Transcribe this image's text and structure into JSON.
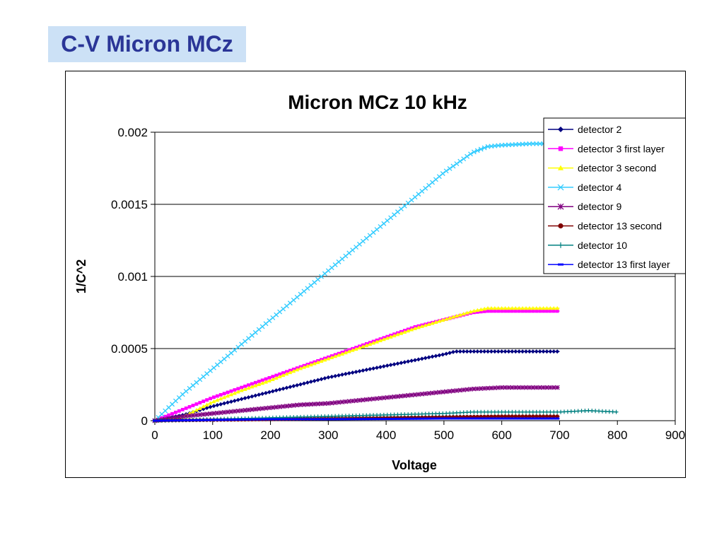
{
  "slide": {
    "title": "C-V Micron MCz"
  },
  "chart_data": {
    "type": "line",
    "title": "Micron MCz 10 kHz",
    "xlabel": "Voltage",
    "ylabel": "1/C^2",
    "xlim": [
      0,
      900
    ],
    "ylim": [
      0,
      0.002
    ],
    "x_ticks": [
      0,
      100,
      200,
      300,
      400,
      500,
      600,
      700,
      800,
      900
    ],
    "x_tick_labels": [
      "0",
      "100",
      "200",
      "300",
      "400",
      "500",
      "600",
      "700",
      "800",
      "900"
    ],
    "y_ticks": [
      0,
      0.0005,
      0.001,
      0.0015,
      0.002
    ],
    "y_tick_labels": [
      "0",
      "0.0005",
      "0.001",
      "0.0015",
      "0.002"
    ],
    "grid": "horizontal",
    "legend_position": "top-right",
    "series": [
      {
        "name": "detector 2",
        "color": "#000080",
        "marker": "diamond",
        "x": [
          0,
          50,
          100,
          150,
          200,
          250,
          300,
          350,
          400,
          450,
          500,
          520,
          550,
          600,
          650,
          700
        ],
        "y": [
          0,
          4e-05,
          0.0001,
          0.00015,
          0.0002,
          0.00025,
          0.0003,
          0.00034,
          0.00038,
          0.00042,
          0.00046,
          0.00048,
          0.00048,
          0.00048,
          0.00048,
          0.00048
        ]
      },
      {
        "name": "detector 3 first layer",
        "color": "#ff00ff",
        "marker": "square",
        "x": [
          0,
          50,
          100,
          150,
          200,
          250,
          300,
          350,
          400,
          450,
          500,
          550,
          575,
          600,
          650,
          700
        ],
        "y": [
          0,
          8e-05,
          0.00016,
          0.00023,
          0.0003,
          0.00037,
          0.00044,
          0.00051,
          0.00058,
          0.00065,
          0.0007,
          0.00075,
          0.00076,
          0.00076,
          0.00076,
          0.00076
        ]
      },
      {
        "name": "detector 3 second",
        "color": "#ffff00",
        "marker": "triangle",
        "x": [
          0,
          50,
          100,
          150,
          200,
          250,
          300,
          350,
          400,
          450,
          500,
          550,
          575,
          600,
          650,
          700
        ],
        "y": [
          0,
          3e-05,
          0.00013,
          0.00021,
          0.00028,
          0.00036,
          0.00043,
          0.0005,
          0.00057,
          0.00064,
          0.0007,
          0.00076,
          0.00078,
          0.00078,
          0.00078,
          0.00078
        ]
      },
      {
        "name": "detector 4",
        "color": "#33ccff",
        "marker": "x",
        "x": [
          0,
          50,
          100,
          150,
          200,
          250,
          300,
          350,
          400,
          450,
          500,
          550,
          575,
          600,
          650,
          700
        ],
        "y": [
          0,
          0.00019,
          0.00036,
          0.00053,
          0.0007,
          0.00087,
          0.00104,
          0.00121,
          0.00138,
          0.00155,
          0.00172,
          0.00186,
          0.0019,
          0.00191,
          0.00192,
          0.00192
        ]
      },
      {
        "name": "detector 9",
        "color": "#800080",
        "marker": "star",
        "x": [
          0,
          50,
          100,
          150,
          200,
          250,
          300,
          350,
          400,
          450,
          500,
          550,
          600,
          650,
          700
        ],
        "y": [
          0,
          3e-05,
          5e-05,
          7e-05,
          9e-05,
          0.00011,
          0.00012,
          0.00014,
          0.00016,
          0.00018,
          0.0002,
          0.00022,
          0.00023,
          0.00023,
          0.00023
        ]
      },
      {
        "name": "detector 13 second",
        "color": "#800000",
        "marker": "circle",
        "x": [
          0,
          100,
          200,
          300,
          400,
          500,
          600,
          650,
          700
        ],
        "y": [
          0,
          5e-06,
          1e-05,
          1.5e-05,
          2e-05,
          2.5e-05,
          3e-05,
          3e-05,
          3e-05
        ]
      },
      {
        "name": "detector 10",
        "color": "#008080",
        "marker": "plus",
        "x": [
          0,
          100,
          200,
          300,
          400,
          500,
          550,
          600,
          650,
          700,
          750,
          800
        ],
        "y": [
          0,
          1e-05,
          2e-05,
          3e-05,
          4e-05,
          5e-05,
          6e-05,
          6e-05,
          6e-05,
          6e-05,
          7e-05,
          6e-05
        ]
      },
      {
        "name": "detector 13 first layer",
        "color": "#0000ff",
        "marker": "dash",
        "x": [
          0,
          100,
          200,
          300,
          400,
          500,
          600,
          700
        ],
        "y": [
          0,
          5e-06,
          1e-05,
          1e-05,
          1.2e-05,
          1.5e-05,
          1.5e-05,
          1.5e-05
        ]
      }
    ]
  }
}
